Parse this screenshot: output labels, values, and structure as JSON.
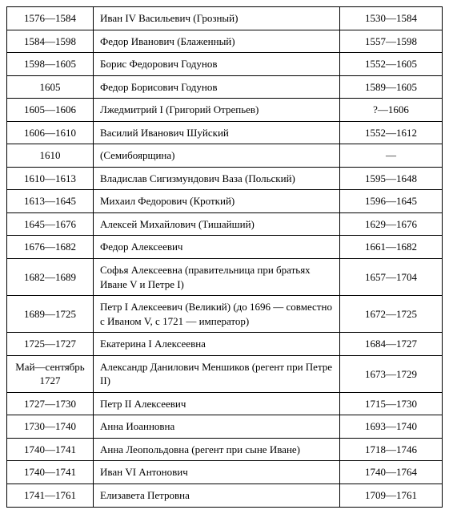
{
  "table": {
    "font_family": "Georgia, serif",
    "font_size": 13,
    "border_color": "#000000",
    "text_color": "#000000",
    "background_color": "#ffffff",
    "col_widths": {
      "reign": 108,
      "life": 128
    },
    "rows": [
      {
        "reign": "1576—1584",
        "name": "Иван IV Васильевич (Грозный)",
        "life": "1530—1584"
      },
      {
        "reign": "1584—1598",
        "name": "Федор Иванович (Блаженный)",
        "life": "1557—1598"
      },
      {
        "reign": "1598—1605",
        "name": "Борис Федорович Годунов",
        "life": "1552—1605"
      },
      {
        "reign": "1605",
        "name": "Федор Борисович Годунов",
        "life": "1589—1605"
      },
      {
        "reign": "1605—1606",
        "name": "Лжедмитрий I (Григорий Отрепьев)",
        "life": "?—1606"
      },
      {
        "reign": "1606—1610",
        "name": "Василий Иванович Шуйский",
        "life": "1552—1612"
      },
      {
        "reign": "1610",
        "name": "(Семибоярщина)",
        "life": "—"
      },
      {
        "reign": "1610—1613",
        "name": "Владислав Сигизмундович Ваза (Польский)",
        "life": "1595—1648"
      },
      {
        "reign": "1613—1645",
        "name": "Михаил Федорович (Кроткий)",
        "life": "1596—1645"
      },
      {
        "reign": "1645—1676",
        "name": "Алексей Михайлович (Тишайший)",
        "life": "1629—1676"
      },
      {
        "reign": "1676—1682",
        "name": "Федор Алексеевич",
        "life": "1661—1682"
      },
      {
        "reign": "1682—1689",
        "name": "Софья Алексеевна (правительница при братьях Иване V и Петре I)",
        "life": "1657—1704"
      },
      {
        "reign": "1689—1725",
        "name": "Петр I Алексеевич (Великий) (до 1696 — совместно с Иваном V, с 1721 — император)",
        "life": "1672—1725"
      },
      {
        "reign": "1725—1727",
        "name": "Екатерина I Алексеевна",
        "life": "1684—1727"
      },
      {
        "reign": "Май—сентябрь 1727",
        "name": "Александр Данилович Меншиков (регент при Петре II)",
        "life": "1673—1729"
      },
      {
        "reign": "1727—1730",
        "name": "Петр II Алексеевич",
        "life": "1715—1730"
      },
      {
        "reign": "1730—1740",
        "name": "Анна Иоанновна",
        "life": "1693—1740"
      },
      {
        "reign": "1740—1741",
        "name": "Анна Леопольдовна (регент при сыне Иване)",
        "life": "1718—1746"
      },
      {
        "reign": "1740—1741",
        "name": "Иван VI Антонович",
        "life": "1740—1764"
      },
      {
        "reign": "1741—1761",
        "name": "Елизавета Петровна",
        "life": "1709—1761"
      }
    ]
  }
}
